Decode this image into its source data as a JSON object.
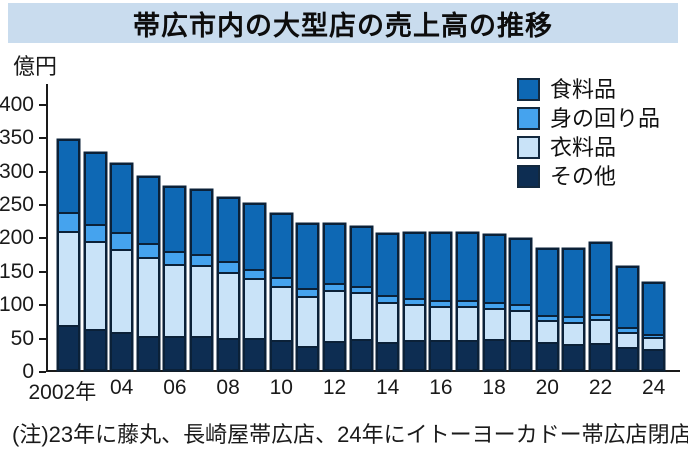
{
  "title": "帯広市内の大型店の売上高の推移",
  "note": "(注)23年に藤丸、長崎屋帯広店、24年にイトーヨーカドー帯広店閉店",
  "y_axis": {
    "unit": "億円",
    "ticks": [
      0,
      50,
      100,
      150,
      200,
      250,
      300,
      350,
      400
    ]
  },
  "x_axis": {
    "first_label": "2002年",
    "even_year_labels": [
      "04",
      "06",
      "08",
      "10",
      "12",
      "14",
      "16",
      "18",
      "20",
      "22",
      "24"
    ]
  },
  "legend": [
    {
      "label": "食料品",
      "color": "#0e68b4"
    },
    {
      "label": "身の回り品",
      "color": "#45a3ee"
    },
    {
      "label": "衣料品",
      "color": "#c9e3f8"
    },
    {
      "label": "その他",
      "color": "#0d2d52"
    }
  ],
  "colors": {
    "banner_bg": "#c9dcee",
    "axis": "#1a1a1a",
    "bar_border": "#0b2138"
  },
  "chart_data": {
    "type": "bar",
    "stacked": true,
    "title": "帯広市内の大型店の売上高の推移",
    "ylabel": "億円",
    "ylim": [
      0,
      400
    ],
    "grid": false,
    "legend_position": "upper right",
    "categories": [
      2002,
      2003,
      2004,
      2005,
      2006,
      2007,
      2008,
      2009,
      2010,
      2011,
      2012,
      2013,
      2014,
      2015,
      2016,
      2017,
      2018,
      2019,
      2020,
      2021,
      2022,
      2023,
      2024
    ],
    "stack_order_bottom_to_top": [
      "その他",
      "衣料品",
      "身の回り品",
      "食料品"
    ],
    "series": [
      {
        "name": "その他",
        "color": "#0d2d52",
        "values": [
          66,
          60,
          56,
          50,
          49,
          50,
          46,
          47,
          44,
          34,
          42,
          45,
          41,
          44,
          43,
          43,
          45,
          44,
          40,
          38,
          39,
          33,
          30
        ]
      },
      {
        "name": "衣料品",
        "color": "#c9e3f8",
        "values": [
          140,
          131,
          124,
          118,
          108,
          105,
          99,
          89,
          80,
          75,
          76,
          70,
          60,
          54,
          52,
          51,
          46,
          44,
          33,
          32,
          36,
          23,
          18
        ]
      },
      {
        "name": "身の回り品",
        "color": "#45a3ee",
        "values": [
          29,
          26,
          25,
          21,
          20,
          17,
          16,
          14,
          13,
          12,
          11,
          10,
          10,
          9,
          9,
          10,
          9,
          9,
          8,
          9,
          8,
          7,
          4
        ]
      },
      {
        "name": "食料品",
        "color": "#0e68b4",
        "values": [
          110,
          108,
          104,
          100,
          97,
          97,
          96,
          98,
          97,
          97,
          89,
          89,
          92,
          98,
          101,
          101,
          102,
          99,
          100,
          102,
          107,
          91,
          79
        ]
      }
    ],
    "totals": [
      345,
      325,
      309,
      289,
      274,
      269,
      257,
      248,
      234,
      218,
      218,
      214,
      203,
      205,
      205,
      205,
      202,
      196,
      181,
      181,
      190,
      154,
      131
    ]
  }
}
